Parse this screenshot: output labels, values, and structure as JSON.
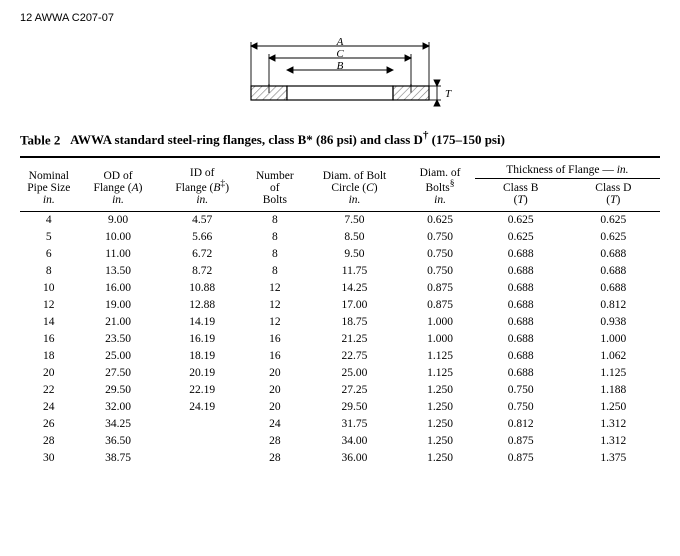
{
  "page_header": "12    AWWA C207-07",
  "diagram": {
    "labels": {
      "A": "A",
      "B": "B",
      "C": "C",
      "T": "T"
    },
    "hatch_color": "#7a7a7a",
    "line_color": "#000000"
  },
  "table": {
    "title_prefix": "Table 2",
    "title_body": "AWWA standard steel-ring flanges, class B* (86 psi) and class D",
    "title_dagger": "†",
    "title_suffix": " (175–150 psi)",
    "group_header": "Thickness of Flange — ",
    "group_header_unit": "in.",
    "columns": [
      {
        "l1": "Nominal",
        "l2": "Pipe Size",
        "unit": "in."
      },
      {
        "l1": "OD of",
        "l2_html": "Flange (<i>A</i>)",
        "unit": "in."
      },
      {
        "l1": "ID of",
        "l2_html": "Flange (<i>B</i><sup>‡</sup>)",
        "unit": "in."
      },
      {
        "l1": "Number",
        "l2": "of",
        "unit": "Bolts"
      },
      {
        "l1": "Diam. of Bolt",
        "l2_html": "Circle (<i>C</i>)",
        "unit": "in."
      },
      {
        "l1": "Diam. of",
        "l2_html": "Bolts<sup>§</sup>",
        "unit": "in."
      },
      {
        "l1": "Class B",
        "l2_html": "(<i>T</i>)",
        "unit": ""
      },
      {
        "l1": "Class D",
        "l2_html": "(<i>T</i>)",
        "unit": ""
      }
    ],
    "rows": [
      [
        "4",
        "9.00",
        "4.57",
        "8",
        "7.50",
        "0.625",
        "0.625",
        "0.625"
      ],
      [
        "5",
        "10.00",
        "5.66",
        "8",
        "8.50",
        "0.750",
        "0.625",
        "0.625"
      ],
      [
        "6",
        "11.00",
        "6.72",
        "8",
        "9.50",
        "0.750",
        "0.688",
        "0.688"
      ],
      [
        "8",
        "13.50",
        "8.72",
        "8",
        "11.75",
        "0.750",
        "0.688",
        "0.688"
      ],
      [
        "10",
        "16.00",
        "10.88",
        "12",
        "14.25",
        "0.875",
        "0.688",
        "0.688"
      ],
      [
        "12",
        "19.00",
        "12.88",
        "12",
        "17.00",
        "0.875",
        "0.688",
        "0.812"
      ],
      [
        "14",
        "21.00",
        "14.19",
        "12",
        "18.75",
        "1.000",
        "0.688",
        "0.938"
      ],
      [
        "16",
        "23.50",
        "16.19",
        "16",
        "21.25",
        "1.000",
        "0.688",
        "1.000"
      ],
      [
        "18",
        "25.00",
        "18.19",
        "16",
        "22.75",
        "1.125",
        "0.688",
        "1.062"
      ],
      [
        "20",
        "27.50",
        "20.19",
        "20",
        "25.00",
        "1.125",
        "0.688",
        "1.125"
      ],
      [
        "22",
        "29.50",
        "22.19",
        "20",
        "27.25",
        "1.250",
        "0.750",
        "1.188"
      ],
      [
        "24",
        "32.00",
        "24.19",
        "20",
        "29.50",
        "1.250",
        "0.750",
        "1.250"
      ],
      [
        "26",
        "34.25",
        "",
        "24",
        "31.75",
        "1.250",
        "0.812",
        "1.312"
      ],
      [
        "28",
        "36.50",
        "",
        "28",
        "34.00",
        "1.250",
        "0.875",
        "1.312"
      ],
      [
        "30",
        "38.75",
        "",
        "28",
        "36.00",
        "1.250",
        "0.875",
        "1.375"
      ]
    ]
  }
}
